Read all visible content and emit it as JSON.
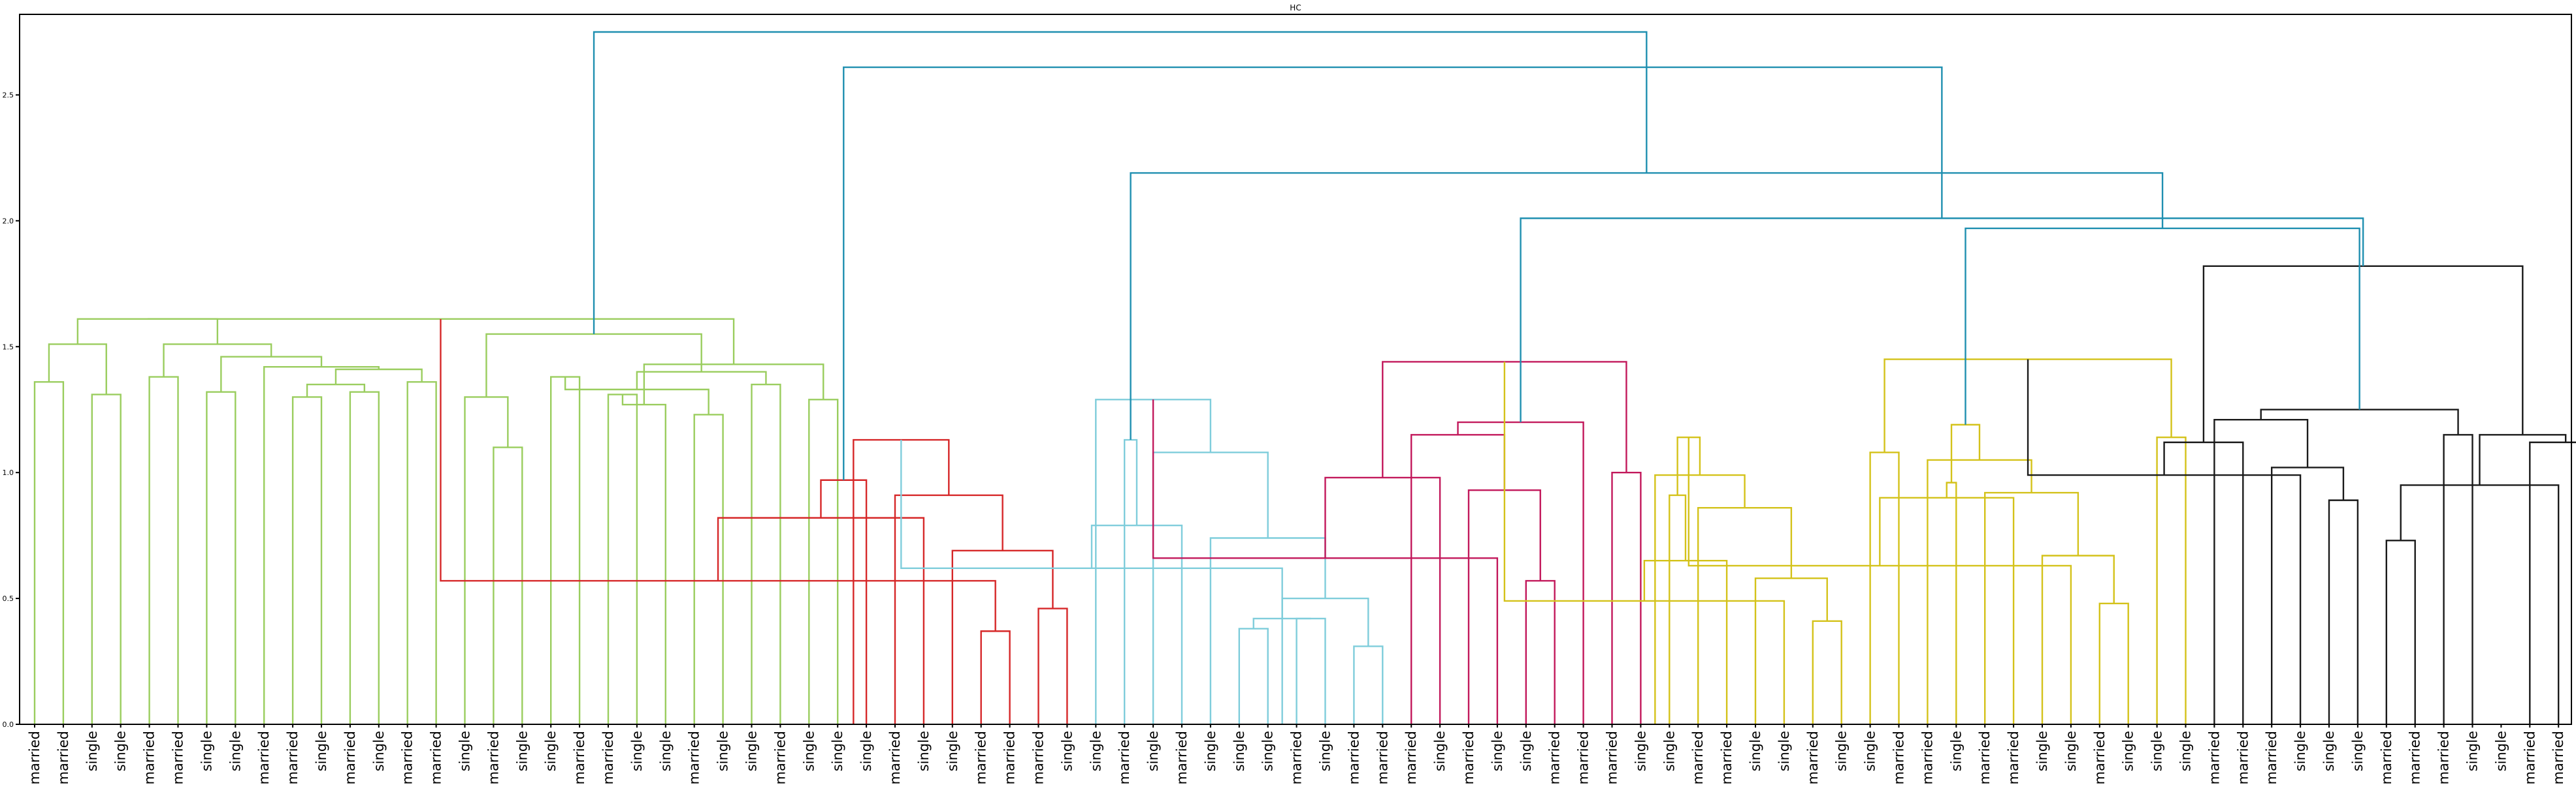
{
  "chart_data": {
    "type": "dendrogram",
    "title": "HC",
    "xlabel": "",
    "ylabel": "",
    "ylim": [
      0,
      2.82
    ],
    "yticks": [
      "0.0",
      "0.5",
      "1.0",
      "1.5",
      "2.0",
      "2.5"
    ],
    "grid": false,
    "leaves": [
      "married",
      "married",
      "single",
      "single",
      "married",
      "married",
      "single",
      "single",
      "married",
      "married",
      "single",
      "married",
      "single",
      "married",
      "married",
      "single",
      "married",
      "single",
      "single",
      "married",
      "married",
      "single",
      "single",
      "married",
      "single",
      "single",
      "married",
      "single",
      "single",
      "single",
      "married",
      "single",
      "single",
      "married",
      "married",
      "married",
      "single",
      "single",
      "married",
      "single",
      "married",
      "single",
      "single",
      "single",
      "married",
      "single",
      "married",
      "married",
      "married",
      "single",
      "married",
      "single",
      "single",
      "married",
      "married",
      "married",
      "single",
      "single",
      "married",
      "married",
      "single",
      "single",
      "married",
      "single",
      "single",
      "married",
      "married",
      "single",
      "married",
      "married",
      "single",
      "single",
      "married",
      "single",
      "single",
      "single",
      "married",
      "married",
      "married",
      "single",
      "single",
      "single",
      "married",
      "married",
      "married",
      "single",
      "single",
      "married",
      "married",
      "single",
      "single"
    ],
    "colors": {
      "green": "#9acd5e",
      "red": "#d62728",
      "cyan": "#7fcddb",
      "magenta": "#c2185b",
      "yellow": "#d4c21a",
      "black": "#1a1a1a",
      "link_above": "#1f8fb0"
    },
    "merges": [
      {
        "a": 0,
        "b": 1,
        "h": 1.36,
        "c": "green"
      },
      {
        "a": 2,
        "b": 3,
        "h": 1.31,
        "c": "green"
      },
      {
        "a": 91,
        "b": 92,
        "h": 1.51,
        "c": "green"
      },
      {
        "a": 4,
        "b": 5,
        "h": 1.38,
        "c": "green"
      },
      {
        "a": 6,
        "b": 7,
        "h": 1.32,
        "c": "green"
      },
      {
        "a": 9,
        "b": 10,
        "h": 1.3,
        "c": "green"
      },
      {
        "a": 11,
        "b": 12,
        "h": 1.32,
        "c": "green"
      },
      {
        "a": 96,
        "b": 97,
        "h": 1.35,
        "c": "green"
      },
      {
        "a": 13,
        "b": 14,
        "h": 1.36,
        "c": "green"
      },
      {
        "a": 98,
        "b": 99,
        "h": 1.41,
        "c": "green"
      },
      {
        "a": 8,
        "b": 100,
        "h": 1.42,
        "c": "green"
      },
      {
        "a": 95,
        "b": 101,
        "h": 1.46,
        "c": "green"
      },
      {
        "a": 94,
        "b": 102,
        "h": 1.51,
        "c": "green"
      },
      {
        "a": 93,
        "b": 103,
        "h": 1.61,
        "c": "green"
      },
      {
        "a": 16,
        "b": 17,
        "h": 1.1,
        "c": "green"
      },
      {
        "a": 15,
        "b": 105,
        "h": 1.3,
        "c": "green"
      },
      {
        "a": 18,
        "b": 19,
        "h": 1.38,
        "c": "green"
      },
      {
        "a": 20,
        "b": 21,
        "h": 1.31,
        "c": "green"
      },
      {
        "a": 23,
        "b": 24,
        "h": 1.23,
        "c": "green"
      },
      {
        "a": 22,
        "b": 108,
        "h": 1.27,
        "c": "green"
      },
      {
        "a": 107,
        "b": 109,
        "h": 1.33,
        "c": "green"
      },
      {
        "a": 25,
        "b": 26,
        "h": 1.35,
        "c": "green"
      },
      {
        "a": 27,
        "b": 28,
        "h": 1.29,
        "c": "green"
      },
      {
        "a": 111,
        "b": 112,
        "h": 1.4,
        "c": "green"
      },
      {
        "a": 110,
        "b": 113,
        "h": 1.43,
        "c": "green"
      },
      {
        "a": 106,
        "b": 114,
        "h": 1.55,
        "c": "green"
      },
      {
        "a": 104,
        "b": 115,
        "h": 1.61,
        "c": "green"
      },
      {
        "a": 33,
        "b": 34,
        "h": 0.37,
        "c": "red"
      },
      {
        "a": 35,
        "b": 36,
        "h": 0.46,
        "c": "red"
      },
      {
        "a": 117,
        "b": 118,
        "h": 0.57,
        "c": "red"
      },
      {
        "a": 32,
        "b": 119,
        "h": 0.69,
        "c": "red"
      },
      {
        "a": 31,
        "b": 120,
        "h": 0.82,
        "c": "red"
      },
      {
        "a": 30,
        "b": 121,
        "h": 0.91,
        "c": "red"
      },
      {
        "a": 29,
        "b": 122,
        "h": 0.97,
        "c": "red"
      },
      {
        "a": 123,
        "b": 28.55,
        "h": 1.13,
        "c": "red"
      },
      {
        "a": 42,
        "b": 43,
        "h": 0.38,
        "c": "cyan"
      },
      {
        "a": 44,
        "b": 45,
        "h": 0.42,
        "c": "cyan"
      },
      {
        "a": 46,
        "b": 47,
        "h": 0.31,
        "c": "cyan"
      },
      {
        "a": 126,
        "b": 127,
        "h": 0.42,
        "c": "cyan"
      },
      {
        "a": 128,
        "b": 43.5,
        "h": 0.5,
        "c": "cyan"
      },
      {
        "a": 125,
        "b": 129,
        "h": 0.62,
        "c": "cyan"
      },
      {
        "a": 41,
        "b": 130,
        "h": 0.74,
        "c": "cyan"
      },
      {
        "a": 40,
        "b": 131,
        "h": 0.79,
        "c": "cyan"
      },
      {
        "a": 39,
        "b": 132,
        "h": 1.08,
        "c": "cyan"
      },
      {
        "a": 38,
        "b": 133,
        "h": 1.13,
        "c": "cyan"
      },
      {
        "a": 37,
        "b": 134,
        "h": 1.29,
        "c": "cyan"
      },
      {
        "a": 52,
        "b": 53,
        "h": 0.57,
        "c": "magenta"
      },
      {
        "a": 51,
        "b": 136,
        "h": 0.66,
        "c": "magenta"
      },
      {
        "a": 50,
        "b": 137,
        "h": 0.93,
        "c": "magenta"
      },
      {
        "a": 49,
        "b": 138,
        "h": 0.98,
        "c": "magenta"
      },
      {
        "a": 48,
        "b": 139,
        "h": 1.15,
        "c": "magenta"
      },
      {
        "a": 55,
        "b": 56,
        "h": 1.0,
        "c": "magenta"
      },
      {
        "a": 54,
        "b": 141,
        "h": 1.2,
        "c": "magenta"
      },
      {
        "a": 140,
        "b": 142,
        "h": 1.44,
        "c": "magenta"
      },
      {
        "a": 62,
        "b": 63,
        "h": 0.41,
        "c": "yellow"
      },
      {
        "a": 61,
        "b": 144,
        "h": 0.49,
        "c": "yellow"
      },
      {
        "a": 60,
        "b": 145,
        "h": 0.58,
        "c": "yellow"
      },
      {
        "a": 59,
        "b": 146,
        "h": 0.65,
        "c": "yellow"
      },
      {
        "a": 58,
        "b": 147,
        "h": 0.86,
        "c": "yellow"
      },
      {
        "a": 57,
        "b": 148,
        "h": 0.91,
        "c": "yellow"
      },
      {
        "a": 149,
        "b": 56.5,
        "h": 0.99,
        "c": "yellow"
      },
      {
        "a": 64,
        "b": 65,
        "h": 1.08,
        "c": "yellow"
      },
      {
        "a": 150,
        "b": 151,
        "h": 1.14,
        "c": "yellow"
      },
      {
        "a": 72,
        "b": 73,
        "h": 0.48,
        "c": "yellow"
      },
      {
        "a": 71,
        "b": 153,
        "h": 0.63,
        "c": "yellow"
      },
      {
        "a": 70,
        "b": 154,
        "h": 0.67,
        "c": "yellow"
      },
      {
        "a": 69,
        "b": 155,
        "h": 0.9,
        "c": "yellow"
      },
      {
        "a": 68,
        "b": 156,
        "h": 0.92,
        "c": "yellow"
      },
      {
        "a": 67,
        "b": 157,
        "h": 0.96,
        "c": "yellow"
      },
      {
        "a": 66,
        "b": 158,
        "h": 1.05,
        "c": "yellow"
      },
      {
        "a": 74,
        "b": 75,
        "h": 1.14,
        "c": "yellow"
      },
      {
        "a": 159,
        "b": 160,
        "h": 1.19,
        "c": "yellow"
      },
      {
        "a": 152,
        "b": 161,
        "h": 1.45,
        "c": "yellow"
      },
      {
        "a": 80,
        "b": 81,
        "h": 0.89,
        "c": "black"
      },
      {
        "a": 79,
        "b": 163,
        "h": 0.99,
        "c": "black"
      },
      {
        "a": 78,
        "b": 164,
        "h": 1.02,
        "c": "black"
      },
      {
        "a": 77,
        "b": 165,
        "h": 1.12,
        "c": "black"
      },
      {
        "a": 76,
        "b": 166,
        "h": 1.21,
        "c": "black"
      },
      {
        "a": 82,
        "b": 83,
        "h": 0.73,
        "c": "black"
      },
      {
        "a": 89,
        "b": 90,
        "h": 0.83,
        "c": "black"
      },
      {
        "a": 88,
        "b": 169,
        "h": 0.95,
        "c": "black"
      },
      {
        "a": 87,
        "b": 170,
        "h": 1.12,
        "c": "black"
      },
      {
        "a": 84,
        "b": 85,
        "h": 1.15,
        "c": "black"
      },
      {
        "a": 172,
        "b": 171,
        "h": 1.15,
        "c": "black"
      },
      {
        "a": 168,
        "b": 173,
        "h": 1.25,
        "c": "black"
      },
      {
        "a": 167,
        "b": 174,
        "h": 1.82,
        "c": "black"
      },
      {
        "a": 162,
        "b": 175,
        "h": 1.97,
        "c": "link_above"
      },
      {
        "a": 143,
        "b": 176,
        "h": 2.01,
        "c": "link_above"
      },
      {
        "a": 135,
        "b": 177,
        "h": 2.19,
        "c": "link_above"
      },
      {
        "a": 124,
        "b": 178,
        "h": 2.61,
        "c": "link_above"
      },
      {
        "a": 116,
        "b": 179,
        "h": 2.75,
        "c": "link_above"
      }
    ]
  }
}
